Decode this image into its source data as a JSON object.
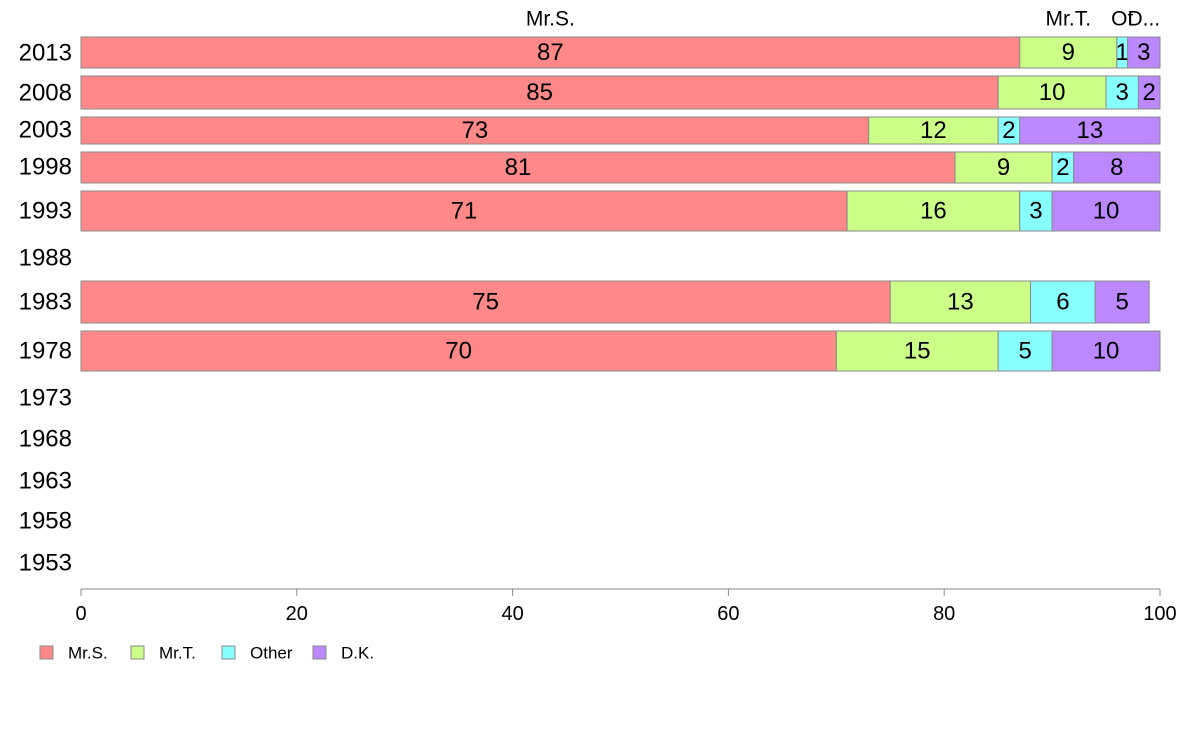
{
  "chart_data": {
    "type": "bar",
    "orientation": "horizontal",
    "stacked": true,
    "categories": [
      "2013",
      "2008",
      "2003",
      "1998",
      "1993",
      "1988",
      "1983",
      "1978",
      "1973",
      "1968",
      "1963",
      "1958",
      "1953"
    ],
    "series": [
      {
        "name": "Mr.S.",
        "color": "#ff8888",
        "values": [
          87,
          85,
          73,
          81,
          71,
          null,
          75,
          70,
          null,
          null,
          null,
          null,
          null
        ]
      },
      {
        "name": "Mr.T.",
        "color": "#ccff88",
        "values": [
          9,
          10,
          12,
          9,
          16,
          null,
          13,
          15,
          null,
          null,
          null,
          null,
          null
        ]
      },
      {
        "name": "Other",
        "color": "#88ffff",
        "values": [
          1,
          3,
          2,
          2,
          3,
          null,
          6,
          5,
          null,
          null,
          null,
          null,
          null
        ]
      },
      {
        "name": "D.K.",
        "color": "#bb88ff",
        "values": [
          3,
          2,
          13,
          8,
          10,
          null,
          5,
          10,
          null,
          null,
          null,
          null,
          null
        ]
      }
    ],
    "top_labels": [
      "Mr.S.",
      "Mr.T.",
      "Ot",
      "D..."
    ],
    "x_ticks": [
      0,
      20,
      40,
      60,
      80,
      100
    ],
    "xlim": [
      0,
      100
    ],
    "legend_position": "bottom-left",
    "grid": false,
    "title": "",
    "xlabel": "",
    "ylabel": ""
  }
}
